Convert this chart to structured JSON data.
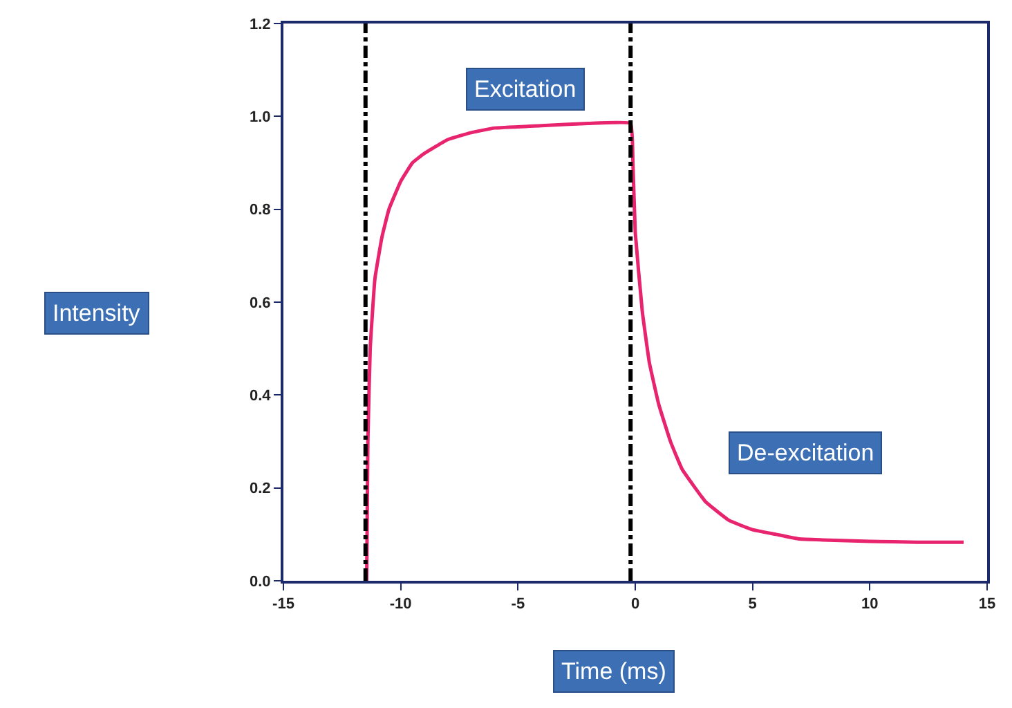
{
  "chart_data": {
    "type": "line",
    "xlabel": "Time (ms)",
    "ylabel": "Intensity",
    "annotations": [
      "Excitation",
      "De-excitation"
    ],
    "x": [
      -11.45,
      -11.4,
      -11.3,
      -11.1,
      -10.8,
      -10.5,
      -10,
      -9.5,
      -9,
      -8,
      -7,
      -6,
      -4,
      -2,
      -0.2,
      -0.1,
      0,
      0.3,
      0.6,
      1,
      1.5,
      2,
      3,
      4,
      5,
      6,
      7,
      8,
      10,
      12,
      14
    ],
    "series": [
      {
        "color": "#e8246e",
        "values": [
          0,
          0.3,
          0.5,
          0.65,
          0.74,
          0.8,
          0.86,
          0.9,
          0.92,
          0.95,
          0.965,
          0.975,
          0.98,
          0.985,
          0.985,
          0.9,
          0.75,
          0.58,
          0.47,
          0.38,
          0.3,
          0.24,
          0.17,
          0.13,
          0.11,
          0.1,
          0.09,
          0.088,
          0.085,
          0.083,
          0.083
        ]
      }
    ],
    "xlim": [
      -15,
      15
    ],
    "xticks": [
      -15,
      -10,
      -5,
      0,
      5,
      10,
      15
    ],
    "ylim": [
      0,
      1.2
    ],
    "yticks": [
      {
        "value": 0,
        "label": "0.0"
      },
      0.2,
      0.4,
      0.6,
      0.8,
      {
        "value": 1,
        "label": "1.0"
      },
      1.2
    ],
    "ref_lines": [
      {
        "axis": "x",
        "value": -11.5,
        "color": "#000000",
        "line_style": "dashdot"
      },
      {
        "axis": "x",
        "value": -0.2,
        "color": "#000000",
        "line_style": "dashdot"
      }
    ],
    "marker": "none",
    "line_style": "solid"
  }
}
